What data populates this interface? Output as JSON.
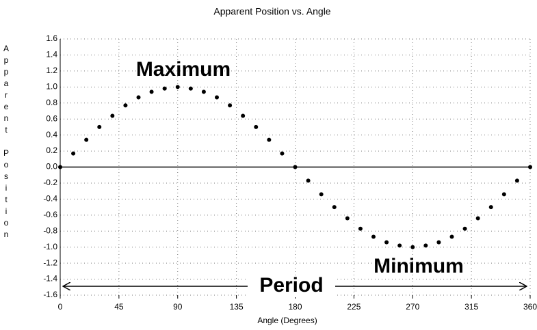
{
  "chart_data": {
    "type": "scatter",
    "title": "Apparent Position vs. Angle",
    "x_label": "Angle (Degrees)",
    "y_label": "Apparent Position",
    "annotations": [
      "Maximum",
      "Minimum",
      "Period"
    ],
    "x": [
      0,
      10,
      20,
      30,
      40,
      50,
      60,
      70,
      80,
      90,
      100,
      110,
      120,
      130,
      140,
      150,
      160,
      170,
      180,
      190,
      200,
      210,
      220,
      230,
      240,
      250,
      260,
      270,
      280,
      290,
      300,
      310,
      320,
      330,
      340,
      350,
      360
    ],
    "values": [
      0,
      0.17,
      0.34,
      0.5,
      0.64,
      0.77,
      0.87,
      0.94,
      0.98,
      1,
      0.98,
      0.94,
      0.87,
      0.77,
      0.64,
      0.5,
      0.34,
      0.17,
      0,
      -0.17,
      -0.34,
      -0.5,
      -0.64,
      -0.77,
      -0.87,
      -0.94,
      -0.98,
      -1,
      -0.98,
      -0.94,
      -0.87,
      -0.77,
      -0.64,
      -0.5,
      -0.34,
      -0.17,
      0
    ],
    "color": "#000000",
    "xlim": [
      0,
      360
    ],
    "xticks": [
      0,
      45,
      90,
      135,
      180,
      225,
      270,
      315,
      360
    ],
    "ylim": [
      -1.6,
      1.6
    ],
    "yticks": [
      1.6,
      1.4,
      1.2,
      {
        "value": 1,
        "label": "1.0"
      },
      0.8,
      0.6,
      0.4,
      0.2,
      {
        "value": 0,
        "label": "0.0"
      },
      -0.2,
      -0.4,
      -0.6,
      -0.8,
      {
        "value": -1,
        "label": "-1.0"
      },
      -1.2,
      -1.4,
      -1.6
    ],
    "grid": true
  }
}
